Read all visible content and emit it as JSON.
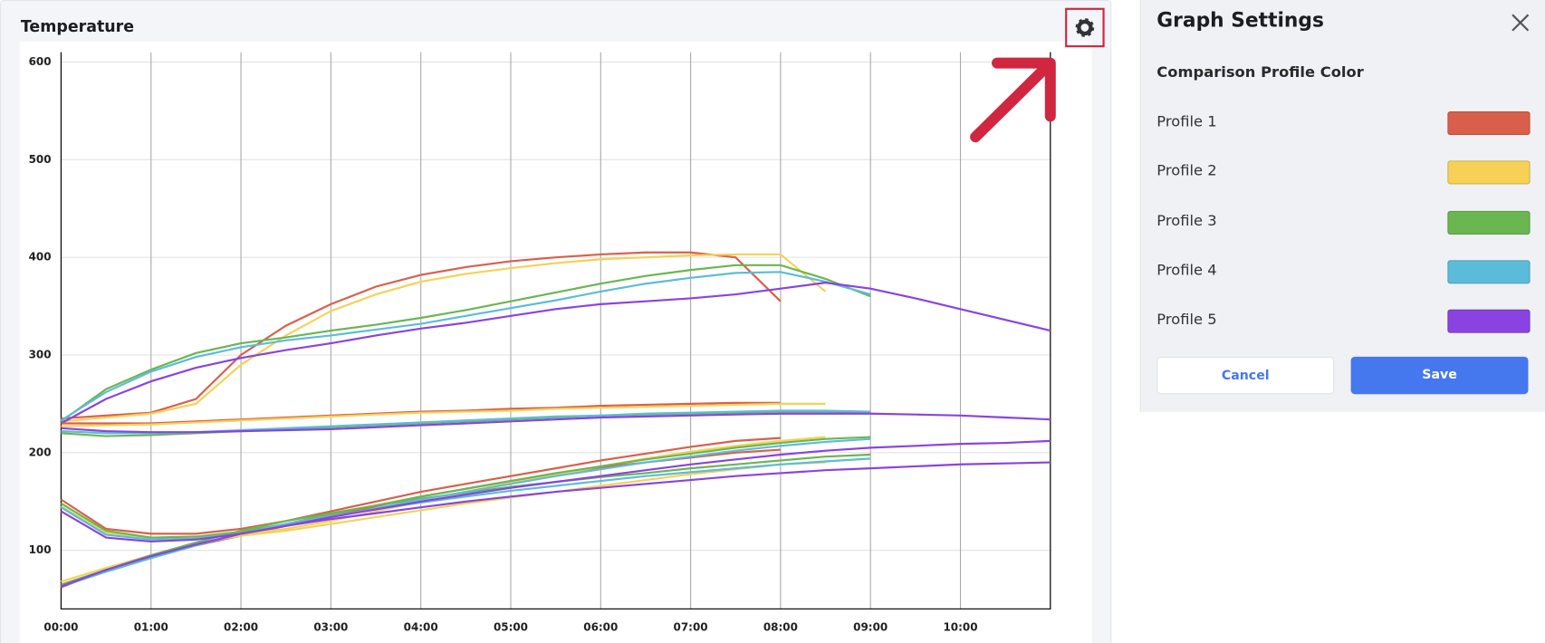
{
  "chart_data": {
    "type": "line",
    "title": "Temperature",
    "x": [
      0,
      0.5,
      1,
      1.5,
      2,
      2.5,
      3,
      3.5,
      4,
      4.5,
      5,
      5.5,
      6,
      6.5,
      7,
      7.5,
      8,
      8.5,
      9,
      9.5,
      10,
      10.5,
      11
    ],
    "xlim": [
      0,
      11
    ],
    "xticks": [
      {
        "value": 0,
        "label": "00:00"
      },
      {
        "value": 1,
        "label": "01:00"
      },
      {
        "value": 2,
        "label": "02:00"
      },
      {
        "value": 3,
        "label": "03:00"
      },
      {
        "value": 4,
        "label": "04:00"
      },
      {
        "value": 5,
        "label": "05:00"
      },
      {
        "value": 6,
        "label": "06:00"
      },
      {
        "value": 7,
        "label": "07:00"
      },
      {
        "value": 8,
        "label": "08:00"
      },
      {
        "value": 9,
        "label": "09:00"
      },
      {
        "value": 10,
        "label": "10:00"
      }
    ],
    "ylim": [
      40,
      610
    ],
    "yticks": [
      100,
      200,
      300,
      400,
      500,
      600
    ],
    "grid": true,
    "series": [
      {
        "color": "#d95f4b",
        "values": [
          235,
          238,
          241,
          255,
          300,
          330,
          352,
          370,
          382,
          390,
          396,
          400,
          403,
          405,
          405,
          400,
          355,
          null,
          null,
          null,
          null,
          null,
          null
        ]
      },
      {
        "color": "#f6d155",
        "values": [
          232,
          236,
          240,
          250,
          290,
          320,
          345,
          362,
          375,
          383,
          389,
          394,
          398,
          400,
          402,
          403,
          403,
          365,
          null,
          null,
          null,
          null,
          null
        ]
      },
      {
        "color": "#6ab651",
        "values": [
          232,
          265,
          285,
          302,
          312,
          318,
          325,
          331,
          338,
          346,
          355,
          364,
          373,
          381,
          387,
          392,
          392,
          378,
          360,
          null,
          null,
          null,
          null
        ]
      },
      {
        "color": "#5bbcd9",
        "values": [
          233,
          262,
          283,
          298,
          308,
          315,
          320,
          326,
          332,
          340,
          348,
          356,
          365,
          373,
          379,
          384,
          385,
          375,
          362,
          null,
          null,
          null,
          null
        ]
      },
      {
        "color": "#8a43e0",
        "values": [
          230,
          255,
          273,
          287,
          297,
          305,
          312,
          320,
          327,
          333,
          340,
          347,
          352,
          355,
          358,
          362,
          368,
          374,
          368,
          358,
          347,
          336,
          325
        ]
      },
      {
        "color": "#d95f4b",
        "values": [
          230,
          230,
          230,
          232,
          234,
          236,
          238,
          240,
          242,
          243,
          245,
          246,
          248,
          249,
          250,
          251,
          251,
          null,
          null,
          null,
          null,
          null,
          null
        ]
      },
      {
        "color": "#f6d155",
        "values": [
          227,
          228,
          229,
          231,
          233,
          235,
          237,
          239,
          241,
          242,
          243,
          245,
          246,
          247,
          248,
          249,
          250,
          250,
          null,
          null,
          null,
          null,
          null
        ]
      },
      {
        "color": "#6ab651",
        "values": [
          220,
          217,
          218,
          220,
          222,
          224,
          226,
          228,
          230,
          232,
          234,
          236,
          238,
          239,
          240,
          241,
          242,
          242,
          241,
          null,
          null,
          null,
          null
        ]
      },
      {
        "color": "#5bbcd9",
        "values": [
          222,
          220,
          220,
          221,
          223,
          225,
          227,
          229,
          231,
          233,
          235,
          237,
          238,
          240,
          241,
          242,
          243,
          243,
          242,
          null,
          null,
          null,
          null
        ]
      },
      {
        "color": "#8a43e0",
        "values": [
          225,
          222,
          221,
          221,
          222,
          223,
          224,
          226,
          228,
          230,
          232,
          234,
          236,
          237,
          238,
          239,
          240,
          240,
          240,
          239,
          238,
          236,
          234
        ]
      },
      {
        "color": "#d95f4b",
        "values": [
          152,
          122,
          117,
          117,
          122,
          130,
          140,
          150,
          160,
          168,
          176,
          184,
          192,
          199,
          206,
          212,
          215,
          null,
          null,
          null,
          null,
          null,
          null
        ]
      },
      {
        "color": "#d95f4b",
        "values": [
          62,
          80,
          93,
          105,
          115,
          125,
          135,
          145,
          155,
          163,
          171,
          178,
          185,
          190,
          195,
          200,
          203,
          null,
          null,
          null,
          null,
          null,
          null
        ]
      },
      {
        "color": "#f6d155",
        "values": [
          145,
          118,
          113,
          113,
          116,
          122,
          130,
          140,
          150,
          160,
          169,
          177,
          186,
          194,
          201,
          207,
          212,
          216,
          null,
          null,
          null,
          null,
          null
        ]
      },
      {
        "color": "#f6d155",
        "values": [
          68,
          82,
          95,
          107,
          115,
          120,
          127,
          134,
          141,
          148,
          154,
          160,
          166,
          172,
          178,
          183,
          188,
          190,
          null,
          null,
          null,
          null,
          null
        ]
      },
      {
        "color": "#6ab651",
        "values": [
          148,
          120,
          113,
          114,
          119,
          127,
          137,
          146,
          155,
          163,
          171,
          179,
          186,
          193,
          199,
          205,
          210,
          214,
          216,
          null,
          null,
          null,
          null
        ]
      },
      {
        "color": "#6ab651",
        "values": [
          65,
          80,
          95,
          108,
          120,
          130,
          138,
          146,
          153,
          159,
          165,
          170,
          175,
          179,
          184,
          188,
          192,
          196,
          198,
          null,
          null,
          null,
          null
        ]
      },
      {
        "color": "#5bbcd9",
        "values": [
          144,
          116,
          111,
          112,
          117,
          125,
          134,
          143,
          152,
          160,
          168,
          176,
          183,
          190,
          196,
          202,
          207,
          211,
          214,
          null,
          null,
          null,
          null
        ]
      },
      {
        "color": "#5bbcd9",
        "values": [
          63,
          78,
          92,
          105,
          117,
          127,
          135,
          142,
          149,
          155,
          161,
          166,
          171,
          176,
          180,
          184,
          188,
          191,
          194,
          null,
          null,
          null,
          null
        ]
      },
      {
        "color": "#8a43e0",
        "values": [
          140,
          113,
          109,
          111,
          117,
          125,
          134,
          142,
          150,
          157,
          164,
          170,
          176,
          182,
          188,
          193,
          198,
          202,
          205,
          207,
          209,
          210,
          212
        ]
      },
      {
        "color": "#8a43e0",
        "values": [
          63,
          80,
          94,
          106,
          117,
          125,
          132,
          138,
          144,
          150,
          155,
          160,
          164,
          168,
          172,
          176,
          179,
          182,
          184,
          186,
          188,
          189,
          190
        ]
      }
    ]
  },
  "settings": {
    "title": "Graph Settings",
    "subtitle": "Comparison Profile Color",
    "profiles": [
      {
        "label": "Profile 1",
        "color": "#d95f4b"
      },
      {
        "label": "Profile 2",
        "color": "#f6d155"
      },
      {
        "label": "Profile 3",
        "color": "#6ab651"
      },
      {
        "label": "Profile 4",
        "color": "#5bbcd9"
      },
      {
        "label": "Profile 5",
        "color": "#8a43e0"
      }
    ],
    "cancel": "Cancel",
    "save": "Save"
  }
}
